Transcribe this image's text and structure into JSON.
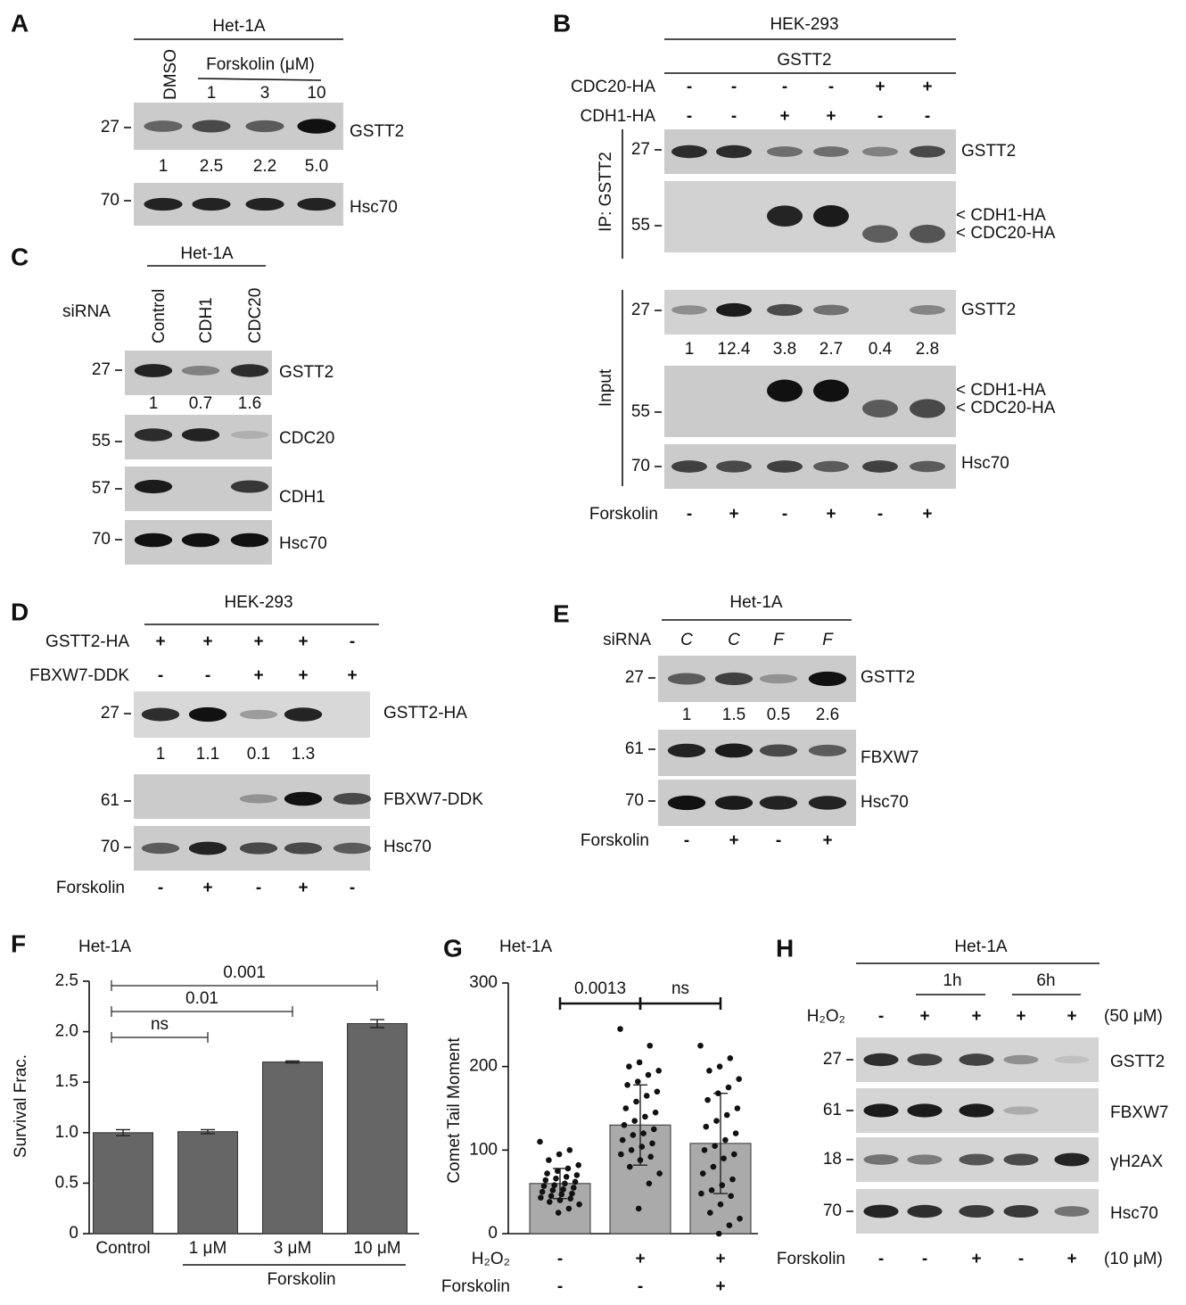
{
  "panels": {
    "A": {
      "label": "A",
      "header": "Het-1A",
      "columns": [
        "DMSO"
      ],
      "treatment": "Forskolin (μM)",
      "doses": [
        "1",
        "3",
        "10"
      ],
      "blots": [
        {
          "mw": "27",
          "name": "GSTT2",
          "quant": [
            "1",
            "2.5",
            "2.2",
            "5.0"
          ]
        },
        {
          "mw": "70",
          "name": "Hsc70"
        }
      ]
    },
    "B": {
      "label": "B",
      "header": "HEK-293",
      "subheader": "GSTT2",
      "rows": [
        {
          "name": "CDC20-HA",
          "signs": [
            "-",
            "-",
            "-",
            "-",
            "+",
            "+"
          ]
        },
        {
          "name": "CDH1-HA",
          "signs": [
            "-",
            "-",
            "+",
            "+",
            "-",
            "-"
          ]
        }
      ],
      "groups": [
        {
          "name": "IP: GSTT2",
          "blots": [
            {
              "mw": "27",
              "name": "GSTT2"
            },
            {
              "mw": "55",
              "names": [
                "< CDH1-HA",
                "< CDC20-HA"
              ]
            }
          ]
        },
        {
          "name": "Input",
          "blots": [
            {
              "mw": "27",
              "name": "GSTT2",
              "quant": [
                "1",
                "12.4",
                "3.8",
                "2.7",
                "0.4",
                "2.8"
              ]
            },
            {
              "mw": "55",
              "names": [
                "< CDH1-HA",
                "< CDC20-HA"
              ]
            },
            {
              "mw": "70",
              "name": "Hsc70"
            }
          ]
        }
      ],
      "footer": {
        "name": "Forskolin",
        "signs": [
          "-",
          "+",
          "-",
          "+",
          "-",
          "+"
        ]
      }
    },
    "C": {
      "label": "C",
      "header": "Het-1A",
      "row_name": "siRNA",
      "columns": [
        "Control",
        "CDH1",
        "CDC20"
      ],
      "blots": [
        {
          "mw": "27",
          "name": "GSTT2",
          "quant": [
            "1",
            "0.7",
            "1.6"
          ]
        },
        {
          "mw": "55",
          "name": "CDC20"
        },
        {
          "mw": "57",
          "name": "CDH1"
        },
        {
          "mw": "70",
          "name": "Hsc70"
        }
      ]
    },
    "D": {
      "label": "D",
      "header": "HEK-293",
      "rows": [
        {
          "name": "GSTT2-HA",
          "signs": [
            "+",
            "+",
            "+",
            "+",
            "-"
          ]
        },
        {
          "name": "FBXW7-DDK",
          "signs": [
            "-",
            "-",
            "+",
            "+",
            "+"
          ]
        }
      ],
      "blots": [
        {
          "mw": "27",
          "name": "GSTT2-HA",
          "quant": [
            "1",
            "1.1",
            "0.1",
            "1.3"
          ]
        },
        {
          "mw": "61",
          "name": "FBXW7-DDK"
        },
        {
          "mw": "70",
          "name": "Hsc70"
        }
      ],
      "footer": {
        "name": "Forskolin",
        "signs": [
          "-",
          "+",
          "-",
          "+",
          "-"
        ]
      }
    },
    "E": {
      "label": "E",
      "header": "Het-1A",
      "row": {
        "name": "siRNA",
        "codes": [
          "C",
          "C",
          "F",
          "F"
        ]
      },
      "blots": [
        {
          "mw": "27",
          "name": "GSTT2",
          "quant": [
            "1",
            "1.5",
            "0.5",
            "2.6"
          ]
        },
        {
          "mw": "61",
          "name": "FBXW7"
        },
        {
          "mw": "70",
          "name": "Hsc70"
        }
      ],
      "footer": {
        "name": "Forskolin",
        "signs": [
          "-",
          "+",
          "-",
          "+"
        ]
      }
    },
    "H": {
      "label": "H",
      "header": "Het-1A",
      "times": [
        "1h",
        "6h"
      ],
      "row": {
        "name": "H₂O₂",
        "signs": [
          "-",
          "+",
          "+",
          "+",
          "+"
        ],
        "dose": "(50 μM)"
      },
      "blots": [
        {
          "mw": "27",
          "name": "GSTT2"
        },
        {
          "mw": "61",
          "name": "FBXW7"
        },
        {
          "mw": "18",
          "name": "γH2AX"
        },
        {
          "mw": "70",
          "name": "Hsc70"
        }
      ],
      "footer": {
        "name": "Forskolin",
        "signs": [
          "-",
          "-",
          "+",
          "-",
          "+"
        ],
        "dose": "(10 μM)"
      }
    }
  },
  "chart_data": [
    {
      "type": "bar",
      "panel": "F",
      "title": "Het-1A",
      "y_label": "Survival Frac.",
      "color": "#666666",
      "categories": [
        "Control",
        "1 μM",
        "3 μM",
        "10 μM"
      ],
      "group_label": "Forskolin",
      "values": [
        1.0,
        1.01,
        1.7,
        2.08
      ],
      "errors": [
        0.03,
        0.02,
        0.01,
        0.04
      ],
      "ylim": [
        0,
        2.5
      ],
      "yticks": [
        0,
        0.5,
        {
          "value": 1,
          "label": "1.0"
        },
        1.5,
        {
          "value": 2,
          "label": "2.0"
        },
        2.5
      ],
      "comparisons": [
        {
          "label": "ns",
          "groups": [
            0,
            1
          ]
        },
        {
          "label": "0.01",
          "groups": [
            0,
            2
          ]
        },
        {
          "label": "0.001",
          "groups": [
            0,
            3
          ]
        }
      ]
    },
    {
      "type": "bar",
      "panel": "G",
      "title": "Het-1A",
      "y_label": "Comet Tail Moment",
      "color": "#aaaaaa",
      "conditions": [
        {
          "name": "H₂O₂",
          "signs": [
            "-",
            "+",
            "+"
          ]
        },
        {
          "name": "Forskolin",
          "signs": [
            "-",
            "-",
            "+"
          ]
        }
      ],
      "values": [
        60,
        130,
        108
      ],
      "errors": [
        18,
        48,
        60
      ],
      "points": [
        [
          110,
          100,
          95,
          88,
          82,
          78,
          75,
          72,
          70,
          68,
          66,
          64,
          62,
          60,
          58,
          57,
          55,
          53,
          52,
          50,
          48,
          47,
          45,
          43,
          42,
          40,
          38,
          35,
          30,
          25
        ],
        [
          245,
          225,
          205,
          200,
          195,
          190,
          182,
          178,
          170,
          165,
          158,
          150,
          145,
          140,
          135,
          130,
          125,
          120,
          118,
          112,
          108,
          104,
          100,
          95,
          92,
          88,
          80,
          72,
          60,
          30
        ],
        [
          225,
          210,
          200,
          195,
          185,
          175,
          168,
          160,
          150,
          142,
          135,
          128,
          120,
          112,
          105,
          100,
          95,
          90,
          80,
          72,
          65,
          58,
          52,
          48,
          45,
          35,
          25,
          18,
          10,
          0
        ]
      ],
      "ylim": [
        0,
        300
      ],
      "yticks": [
        0,
        100,
        200,
        300
      ],
      "comparisons": [
        {
          "label": "0.0013",
          "groups": [
            0,
            1
          ]
        },
        {
          "label": "ns",
          "groups": [
            1,
            2
          ]
        }
      ]
    }
  ]
}
